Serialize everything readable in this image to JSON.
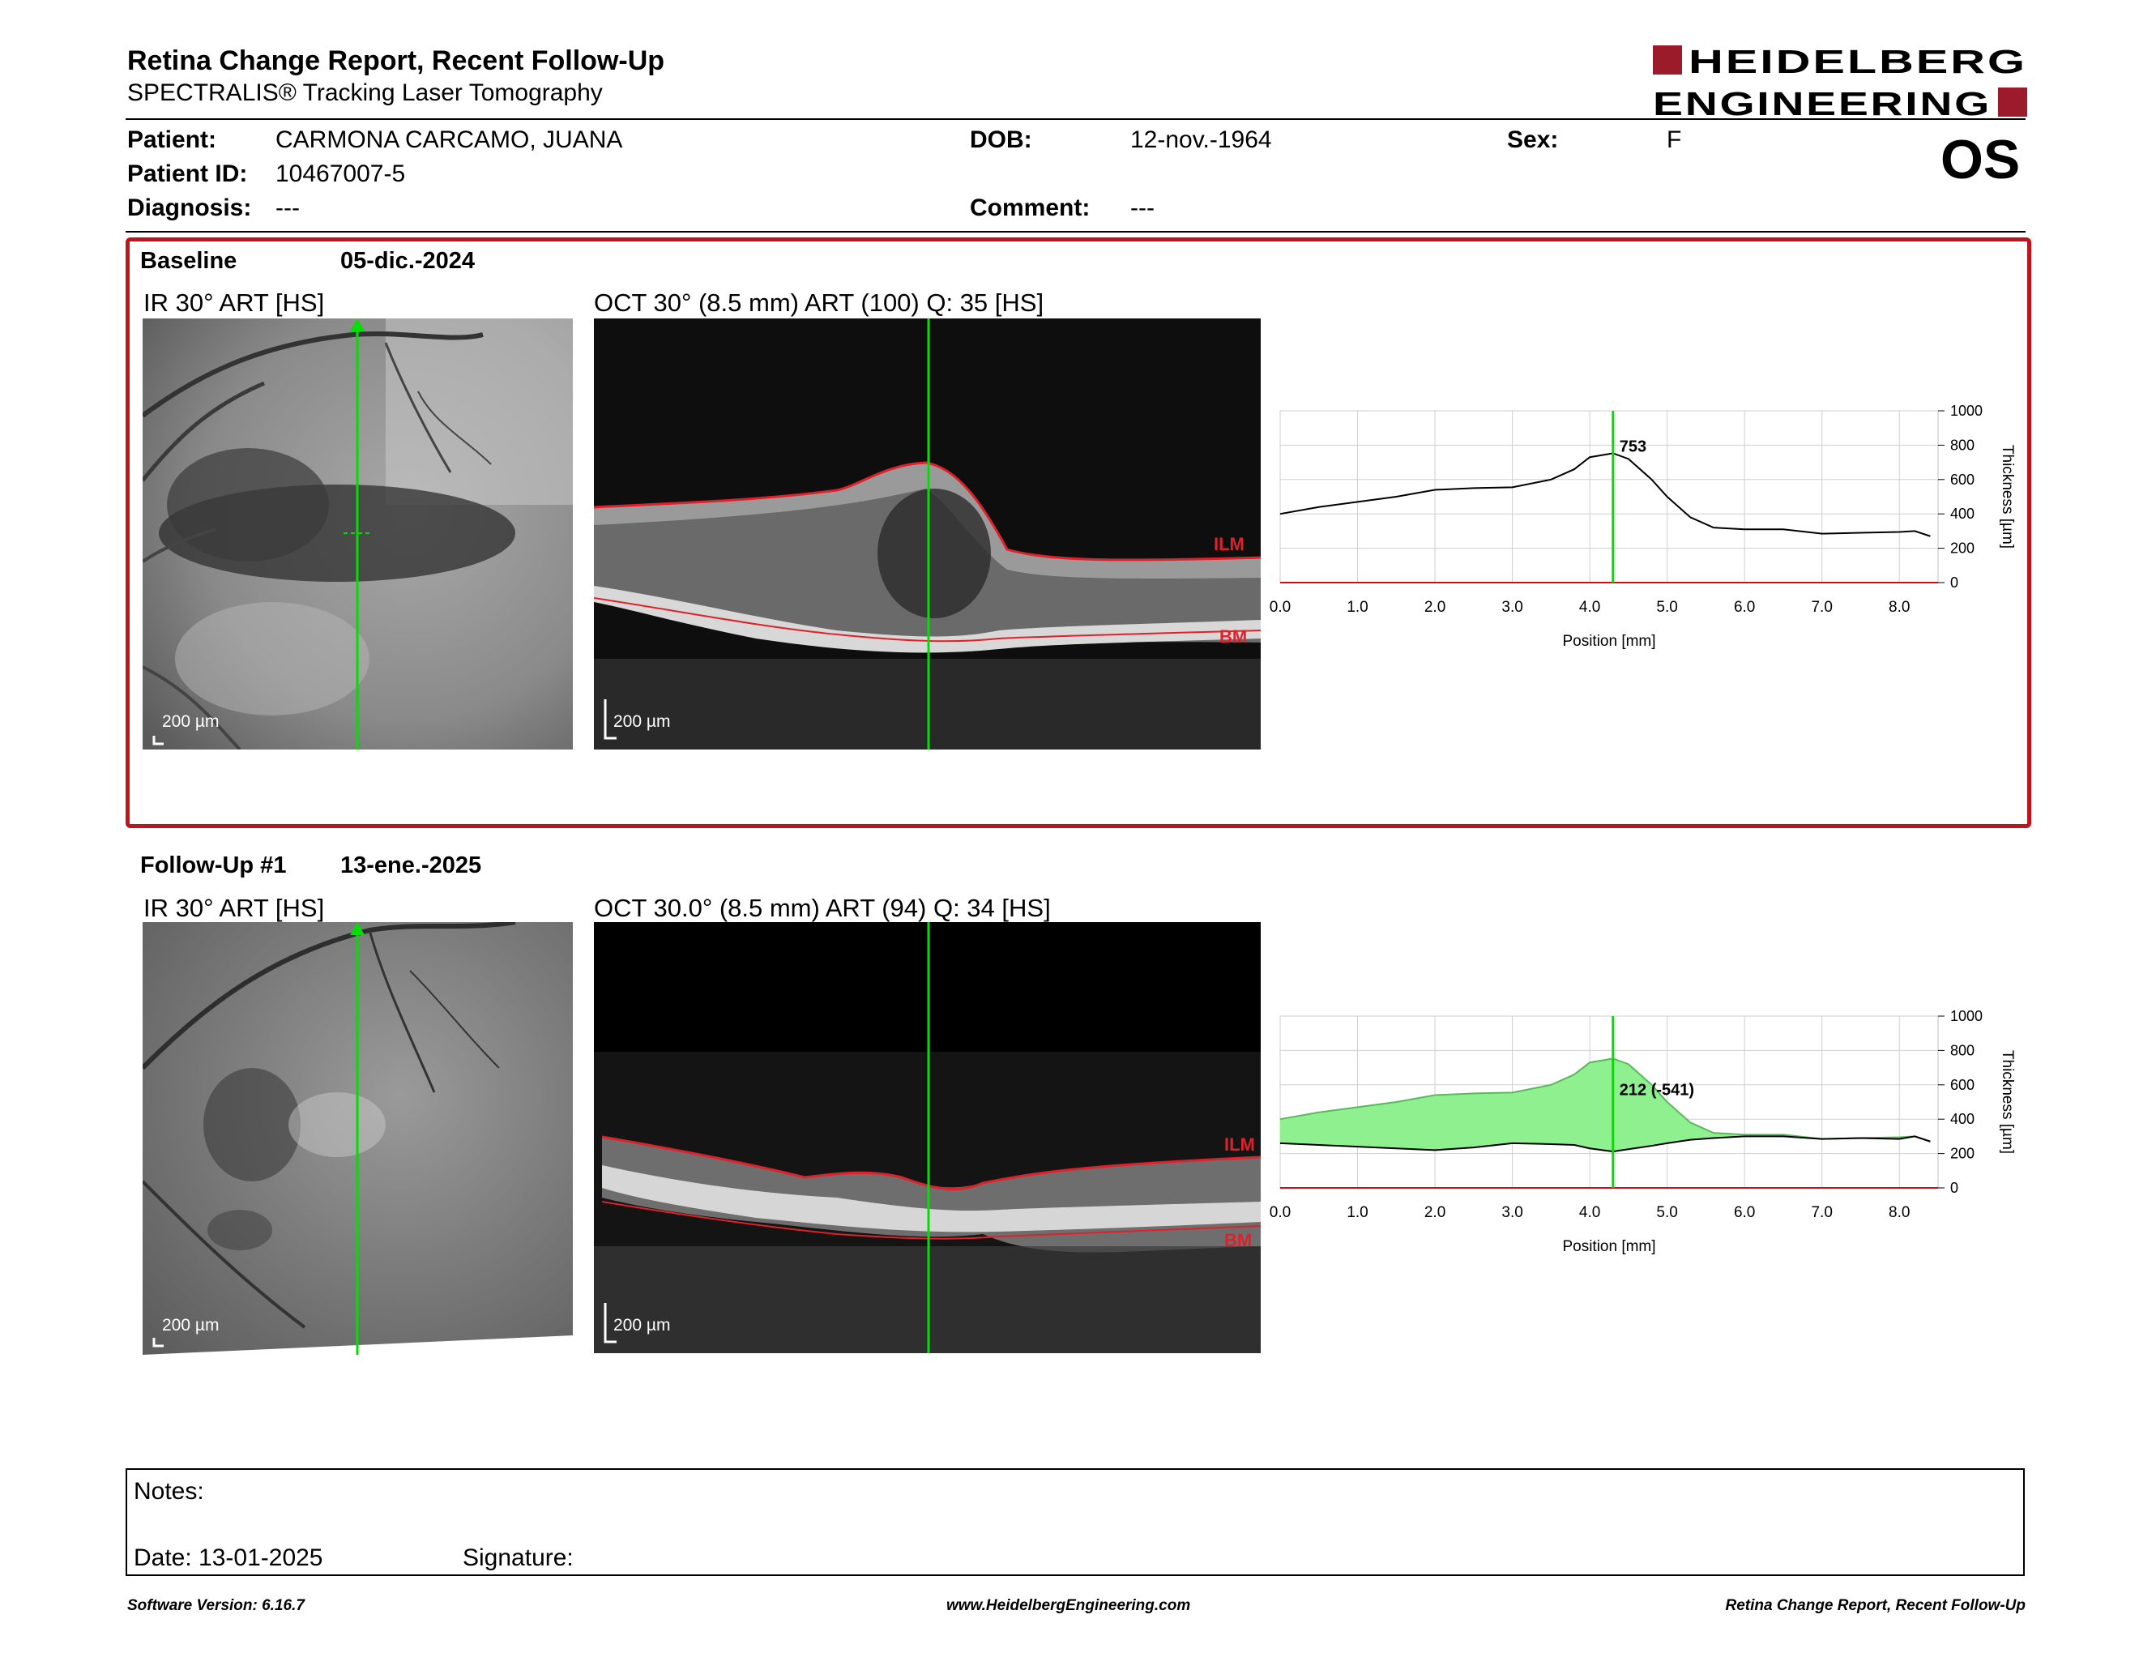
{
  "header": {
    "title": "Retina Change Report, Recent Follow-Up",
    "subtitle": "SPECTRALIS® Tracking Laser Tomography",
    "logo_line1": "HEIDELBERG",
    "logo_line2": "ENGINEERING",
    "eye": "OS"
  },
  "patient": {
    "patient_label": "Patient:",
    "patient_value": "CARMONA CARCAMO, JUANA",
    "id_label": "Patient ID:",
    "id_value": "10467007-5",
    "diagnosis_label": "Diagnosis:",
    "diagnosis_value": "---",
    "dob_label": "DOB:",
    "dob_value": "12-nov.-1964",
    "comment_label": "Comment:",
    "comment_value": "---",
    "sex_label": "Sex:",
    "sex_value": "F"
  },
  "baseline": {
    "label": "Baseline",
    "date": "05-dic.-2024",
    "ir_title": "IR 30° ART [HS]",
    "oct_title": "OCT 30° (8.5 mm) ART (100) Q: 35 [HS]",
    "scale": "200 µm",
    "ilm": "ILM",
    "bm": "BM"
  },
  "followup": {
    "label": "Follow-Up #1",
    "date": "13-ene.-2025",
    "ir_title": "IR 30° ART [HS]",
    "oct_title": "OCT 30.0° (8.5 mm) ART (94) Q: 34 [HS]",
    "scale": "200 µm",
    "ilm": "ILM",
    "bm": "BM"
  },
  "chart_data": [
    {
      "type": "line",
      "xlabel": "Position [mm]",
      "ylabel": "Thickness [µm]",
      "xlim": [
        0,
        8.5
      ],
      "ylim": [
        0,
        1000
      ],
      "xticks": [
        "0.0",
        "1.0",
        "2.0",
        "3.0",
        "4.0",
        "5.0",
        "6.0",
        "7.0",
        "8.0"
      ],
      "yticks": [
        "0",
        "200",
        "400",
        "600",
        "800",
        "1000"
      ],
      "cursor_x": 4.3,
      "cursor_label": "753",
      "grid": true,
      "series": [
        {
          "x": [
            0,
            0.5,
            1.0,
            1.5,
            2.0,
            2.5,
            3.0,
            3.5,
            3.8,
            4.0,
            4.3,
            4.5,
            4.8,
            5.0,
            5.3,
            5.6,
            6.0,
            6.5,
            7.0,
            7.5,
            8.0,
            8.2,
            8.4
          ],
          "y": [
            400,
            440,
            470,
            500,
            540,
            550,
            555,
            600,
            660,
            730,
            753,
            720,
            600,
            500,
            380,
            320,
            310,
            310,
            285,
            290,
            295,
            300,
            270
          ]
        }
      ]
    },
    {
      "type": "area",
      "xlabel": "Position [mm]",
      "ylabel": "Thickness [µm]",
      "xlim": [
        0,
        8.5
      ],
      "ylim": [
        0,
        1000
      ],
      "xticks": [
        "0.0",
        "1.0",
        "2.0",
        "3.0",
        "4.0",
        "5.0",
        "6.0",
        "7.0",
        "8.0"
      ],
      "yticks": [
        "0",
        "200",
        "400",
        "600",
        "800",
        "1000"
      ],
      "cursor_x": 4.3,
      "cursor_label": "212 (-541)",
      "grid": true,
      "series": [
        {
          "x": [
            0,
            0.5,
            1.0,
            1.5,
            2.0,
            2.5,
            3.0,
            3.5,
            3.8,
            4.0,
            4.3,
            4.5,
            4.8,
            5.0,
            5.3,
            5.6,
            6.0,
            6.5,
            7.0,
            7.5,
            8.0,
            8.2,
            8.4
          ],
          "y": [
            400,
            440,
            470,
            500,
            540,
            550,
            555,
            600,
            660,
            730,
            753,
            720,
            600,
            500,
            380,
            320,
            310,
            310,
            285,
            290,
            295,
            300,
            270
          ]
        },
        {
          "x": [
            0,
            0.5,
            1.0,
            1.5,
            2.0,
            2.5,
            3.0,
            3.5,
            3.8,
            4.0,
            4.3,
            4.5,
            4.8,
            5.0,
            5.3,
            5.6,
            6.0,
            6.5,
            7.0,
            7.5,
            8.0,
            8.2,
            8.4
          ],
          "y": [
            260,
            250,
            240,
            230,
            220,
            235,
            260,
            255,
            250,
            230,
            212,
            225,
            245,
            260,
            280,
            290,
            300,
            300,
            285,
            290,
            285,
            300,
            270
          ]
        }
      ]
    }
  ],
  "notes": {
    "notes_label": "Notes:",
    "date_label": "Date: 13-01-2025",
    "signature_label": "Signature:"
  },
  "footer": {
    "software": "Software Version: 6.16.7",
    "website": "www.HeidelbergEngineering.com",
    "report": "Retina Change Report, Recent Follow-Up"
  },
  "colors": {
    "accent_red": "#c0141c",
    "logo_red": "#9b1b2a",
    "scan_green": "#00e000",
    "fill_green": "#8ef08e"
  }
}
